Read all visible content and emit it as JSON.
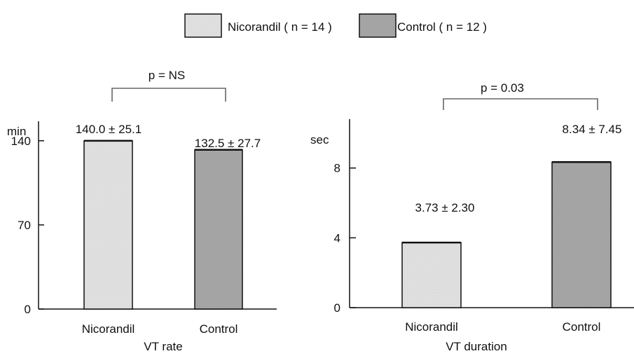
{
  "legend": {
    "items": [
      {
        "label": "Nicorandil ( n = 14 )",
        "color": "#e4e4e4"
      },
      {
        "label": "Control ( n = 12 )",
        "color": "#a8a8a8"
      }
    ]
  },
  "colors": {
    "nicorandil_fill": "#e4e4e4",
    "control_fill": "#a8a8a8",
    "axis": "#111111",
    "bracket": "#666666"
  },
  "chart_data": [
    {
      "type": "bar",
      "categories": [
        "Nicorandil",
        "Control"
      ],
      "values": [
        140.0,
        132.5
      ],
      "value_labels": [
        "140.0 ± 25.1",
        "132.5 ± 27.7"
      ],
      "xlabel": "VT rate",
      "ylabel": "min",
      "yticks": [
        0,
        70,
        140
      ],
      "ylim": [
        0,
        158
      ],
      "significance": {
        "label": "p = NS",
        "between": [
          0,
          1
        ]
      },
      "grid": false
    },
    {
      "type": "bar",
      "categories": [
        "Nicorandil",
        "Control"
      ],
      "values": [
        3.73,
        8.34
      ],
      "value_labels": [
        "3.73 ± 2.30",
        "8.34 ± 7.45"
      ],
      "xlabel": "VT duration",
      "ylabel": "sec",
      "yticks": [
        0,
        4,
        8
      ],
      "ylim": [
        0,
        10.8
      ],
      "significance": {
        "label": "p = 0.03",
        "between": [
          0,
          1
        ]
      },
      "grid": false
    }
  ]
}
